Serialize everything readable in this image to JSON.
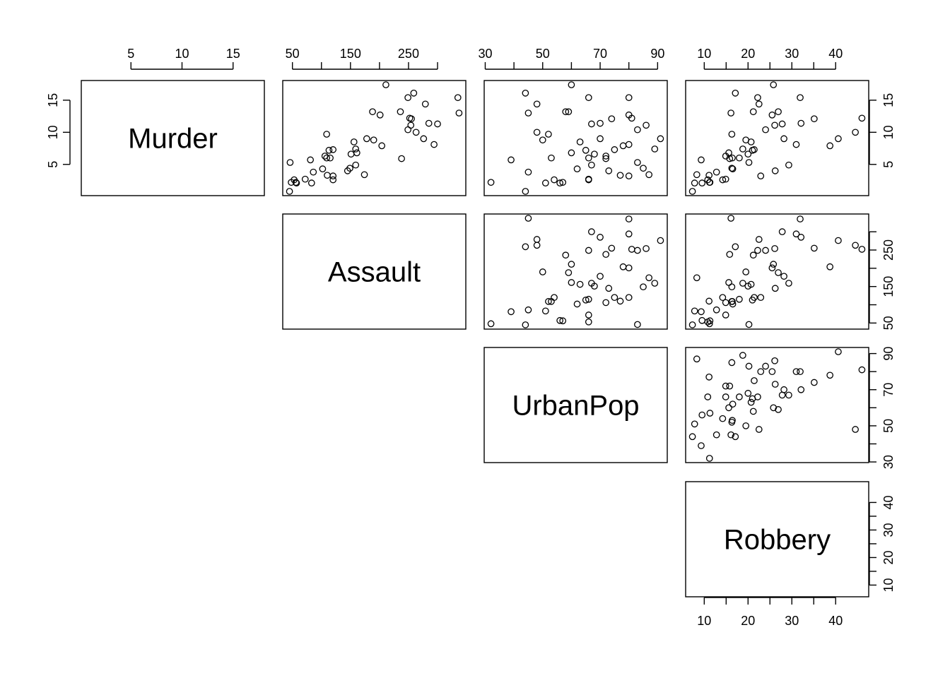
{
  "chart_data": {
    "type": "scatter",
    "variables": [
      {
        "name": "Murder",
        "ticks": [
          5,
          10,
          15
        ],
        "range": [
          0.8,
          17.4
        ]
      },
      {
        "name": "Assault",
        "ticks": [
          50,
          100,
          150,
          200,
          250,
          300
        ],
        "tick_labels": [
          "50",
          "",
          "150",
          "",
          "250",
          ""
        ],
        "range": [
          45,
          337
        ]
      },
      {
        "name": "UrbanPop",
        "ticks": [
          30,
          40,
          50,
          60,
          70,
          80,
          90
        ],
        "tick_labels": [
          "30",
          "",
          "50",
          "",
          "70",
          "",
          "90"
        ],
        "range": [
          32,
          91
        ]
      },
      {
        "name": "Robbery",
        "ticks": [
          10,
          15,
          20,
          25,
          30,
          35,
          40
        ],
        "tick_labels": [
          "10",
          "",
          "20",
          "",
          "30",
          "",
          "40"
        ],
        "range": [
          7.3,
          46
        ]
      }
    ],
    "observations": [
      [
        13.2,
        236,
        58,
        21.2
      ],
      [
        10.0,
        263,
        48,
        44.5
      ],
      [
        8.1,
        294,
        80,
        31.0
      ],
      [
        8.8,
        190,
        50,
        19.5
      ],
      [
        9.0,
        276,
        91,
        40.6
      ],
      [
        7.9,
        204,
        78,
        38.7
      ],
      [
        3.3,
        110,
        77,
        11.1
      ],
      [
        5.9,
        238,
        72,
        15.8
      ],
      [
        15.4,
        335,
        80,
        31.9
      ],
      [
        17.4,
        211,
        60,
        25.8
      ],
      [
        5.3,
        46,
        83,
        20.2
      ],
      [
        2.6,
        120,
        54,
        14.2
      ],
      [
        10.4,
        249,
        83,
        24.0
      ],
      [
        7.2,
        113,
        65,
        21.0
      ],
      [
        2.2,
        56,
        57,
        11.3
      ],
      [
        6.0,
        115,
        66,
        18.0
      ],
      [
        9.7,
        109,
        52,
        16.3
      ],
      [
        15.4,
        249,
        66,
        22.2
      ],
      [
        2.1,
        83,
        51,
        7.8
      ],
      [
        11.3,
        300,
        67,
        27.8
      ],
      [
        4.4,
        149,
        85,
        16.3
      ],
      [
        12.1,
        255,
        74,
        35.1
      ],
      [
        2.7,
        72,
        66,
        14.9
      ],
      [
        16.1,
        259,
        44,
        17.1
      ],
      [
        9.0,
        178,
        70,
        28.2
      ],
      [
        6.0,
        109,
        53,
        16.4
      ],
      [
        4.3,
        102,
        62,
        16.5
      ],
      [
        12.2,
        252,
        81,
        46.0
      ],
      [
        2.1,
        57,
        56,
        9.5
      ],
      [
        7.4,
        159,
        89,
        18.8
      ],
      [
        11.4,
        285,
        70,
        32.1
      ],
      [
        11.1,
        254,
        86,
        26.1
      ],
      [
        13.0,
        337,
        45,
        16.1
      ],
      [
        0.8,
        45,
        44,
        7.3
      ],
      [
        7.3,
        120,
        75,
        21.4
      ],
      [
        6.6,
        151,
        68,
        20.0
      ],
      [
        4.9,
        159,
        67,
        29.3
      ],
      [
        6.3,
        106,
        72,
        14.9
      ],
      [
        3.4,
        174,
        87,
        8.3
      ],
      [
        14.4,
        279,
        48,
        22.5
      ],
      [
        3.8,
        86,
        45,
        12.8
      ],
      [
        13.2,
        188,
        59,
        26.9
      ],
      [
        12.7,
        201,
        80,
        25.5
      ],
      [
        3.2,
        120,
        80,
        22.9
      ],
      [
        2.2,
        48,
        32,
        11.2
      ],
      [
        8.5,
        156,
        63,
        20.7
      ],
      [
        4.0,
        145,
        73,
        26.2
      ],
      [
        5.7,
        81,
        39,
        9.3
      ],
      [
        2.6,
        53,
        66,
        10.8
      ],
      [
        6.8,
        161,
        60,
        15.6
      ]
    ]
  }
}
